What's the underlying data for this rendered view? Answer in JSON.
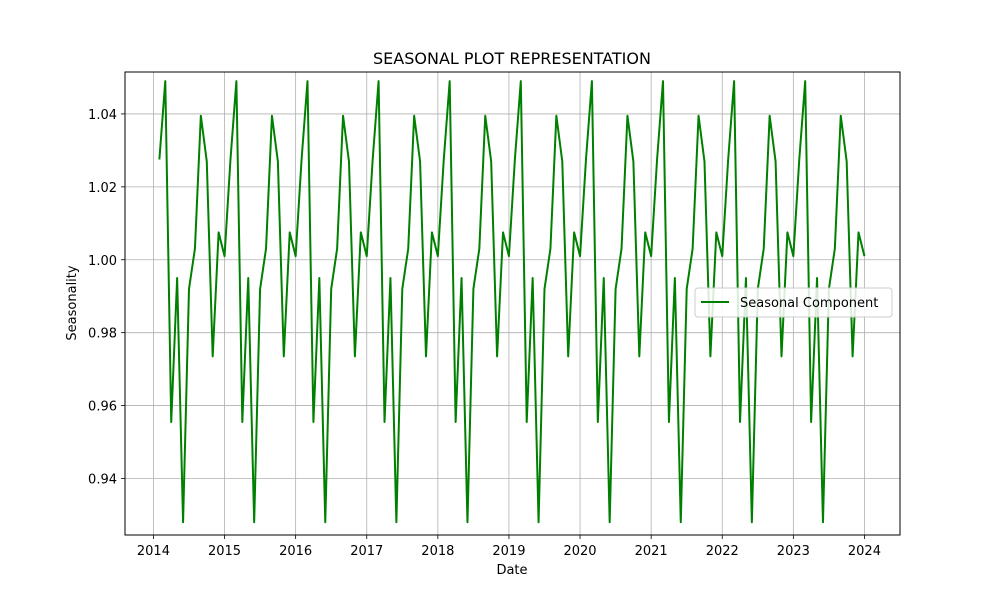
{
  "chart_data": {
    "type": "line",
    "title": "SEASONAL PLOT REPRESENTATION",
    "xlabel": "Date",
    "ylabel": "Seasonality",
    "grid": true,
    "legend_position": "center-right",
    "xlim": [
      2013.6,
      2024.5
    ],
    "ylim": [
      0.9245,
      1.0515
    ],
    "x_ticks": [
      2014,
      2015,
      2016,
      2017,
      2018,
      2019,
      2020,
      2021,
      2022,
      2023,
      2024
    ],
    "x_tick_labels": [
      "2014",
      "2015",
      "2016",
      "2017",
      "2018",
      "2019",
      "2020",
      "2021",
      "2022",
      "2023",
      "2024"
    ],
    "y_ticks": [
      0.94,
      0.96,
      0.98,
      1.0,
      1.02,
      1.04
    ],
    "y_tick_labels": [
      "0.94",
      "0.96",
      "0.98",
      "1.00",
      "1.02",
      "1.04"
    ],
    "monthly_pattern": [
      1.0275,
      1.049,
      0.9555,
      0.995,
      0.928,
      0.992,
      1.003,
      1.0395,
      1.027,
      0.9735,
      1.0075,
      1.001
    ],
    "series": [
      {
        "name": "Seasonal Component",
        "color": "#008000",
        "start": "2014-01",
        "end": "2023-12",
        "frequency": "monthly"
      }
    ]
  }
}
